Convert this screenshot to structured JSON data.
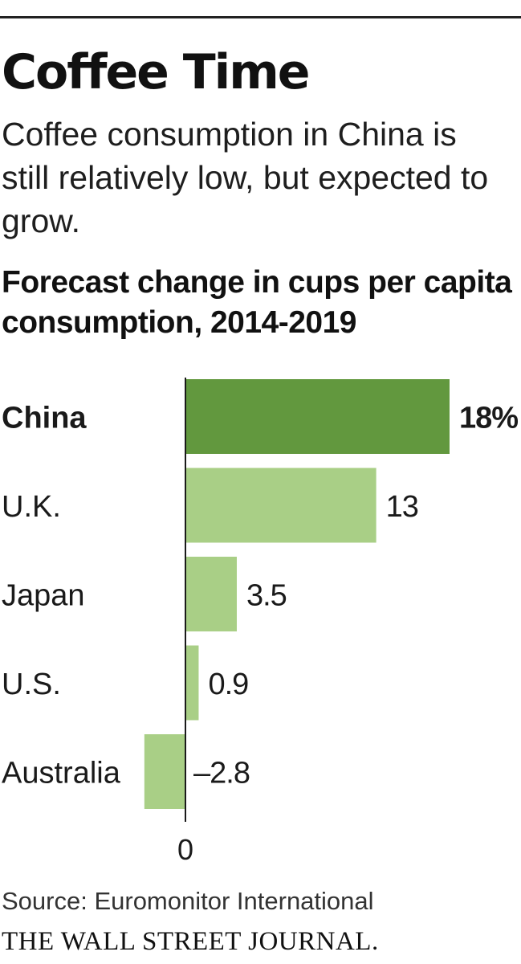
{
  "header": {
    "title": "Coffee Time",
    "subtitle": "Coffee consumption in China is still relatively low, but expected to grow."
  },
  "colors": {
    "highlight_bar": "#62983e",
    "bar": "#a9cf86",
    "axis": "#1a1a1a",
    "text": "#1a1a1a"
  },
  "chart_data": {
    "type": "bar",
    "orientation": "horizontal",
    "title": "Forecast change in cups per capita consumption, 2014-2019",
    "categories": [
      "China",
      "U.K.",
      "Japan",
      "U.S.",
      "Australia"
    ],
    "values": [
      18,
      13,
      3.5,
      0.9,
      -2.8
    ],
    "value_labels": [
      "18%",
      "13",
      "3.5",
      "0.9",
      "–2.8"
    ],
    "highlight": "China",
    "zero_label": "0",
    "xlabel": "",
    "ylabel": "",
    "xlim": [
      -2.8,
      18
    ],
    "grid": false
  },
  "footer": {
    "source": "Source: Euromonitor International",
    "brand": "THE WALL STREET JOURNAL."
  }
}
